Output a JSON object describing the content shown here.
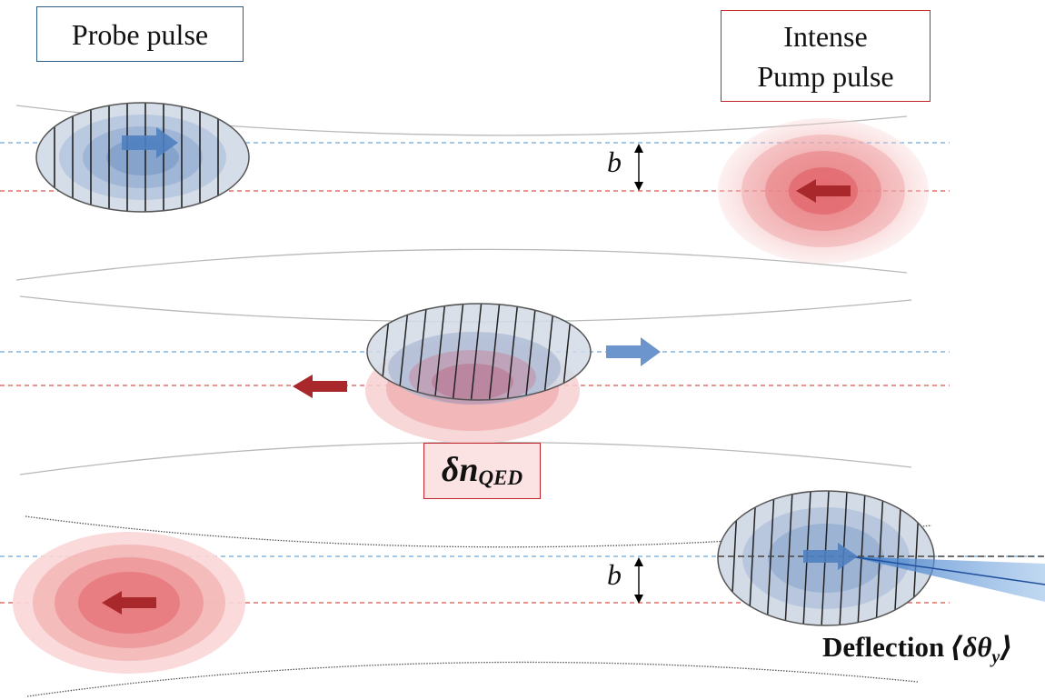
{
  "labels": {
    "probe_pulse": "Probe pulse",
    "pump_line1": "Intense",
    "pump_line2": "Pump pulse",
    "impact_b": "b",
    "delta_n": "δn",
    "delta_n_sub": "QED",
    "deflection": "Deflection",
    "deflection_math": "⟨δθ",
    "deflection_sub": "y",
    "deflection_close": "⟩"
  },
  "colors": {
    "probe_blue": "#5b86c0",
    "probe_line": "#6fa8dc",
    "pump_red": "#e06a6a",
    "pump_line": "#d9534f",
    "pump_arrow": "#a8282b",
    "probe_arrow": "#4f7fc0",
    "box_blue": "#2f5c85",
    "box_red": "#c0262b"
  },
  "icons": {
    "probe_arrow": "right-arrow-icon",
    "pump_arrow": "left-arrow-icon",
    "double_arrow": "double-headed-arrow-icon"
  }
}
